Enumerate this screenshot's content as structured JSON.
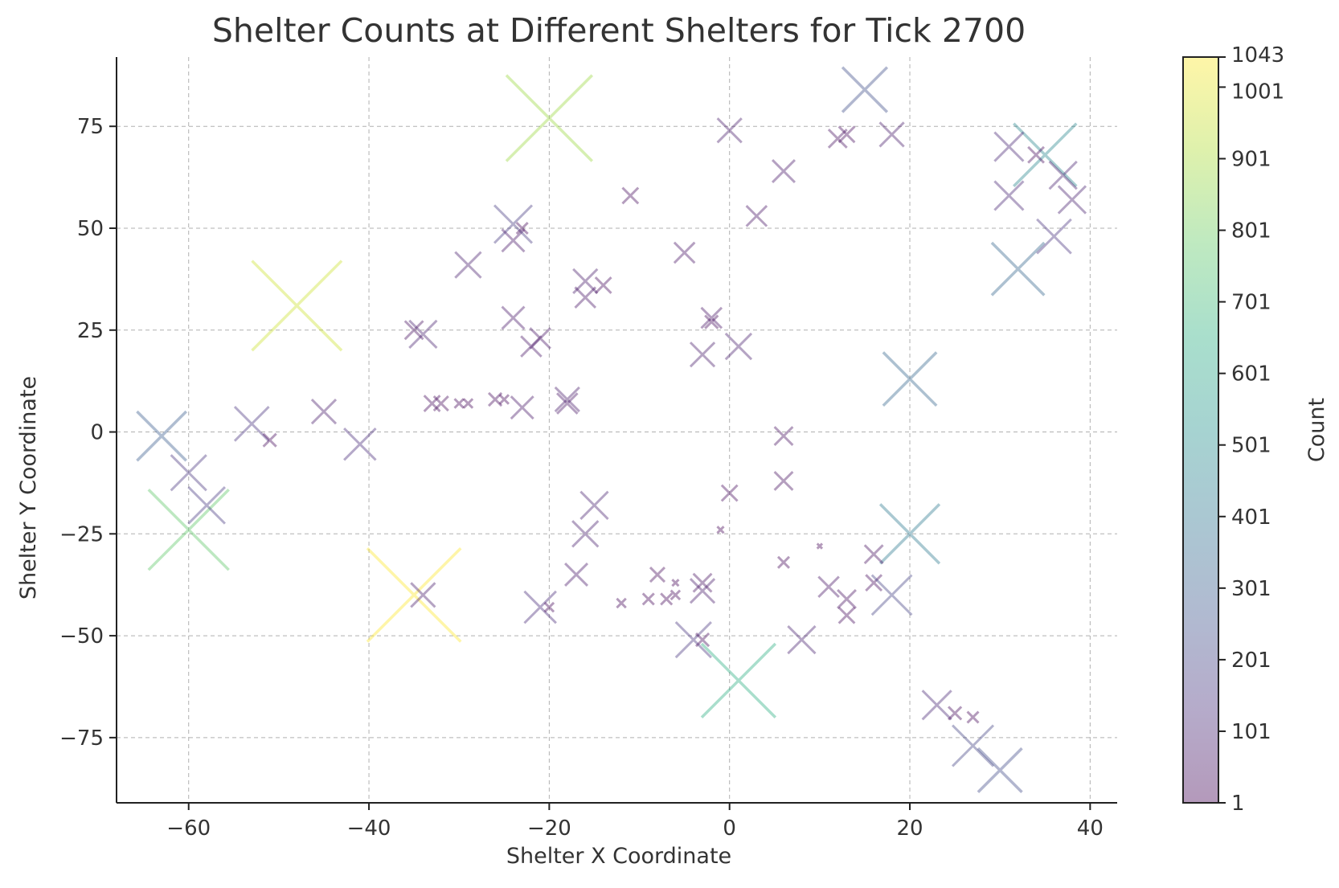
{
  "chart_data": {
    "type": "scatter",
    "marker": "x",
    "title": "Shelter Counts at Different Shelters for Tick 2700",
    "xlabel": "Shelter X Coordinate",
    "ylabel": "Shelter Y Coordinate",
    "xlim": [
      -68,
      43
    ],
    "ylim": [
      -91,
      92
    ],
    "xticks": [
      -60,
      -40,
      -20,
      0,
      20,
      40
    ],
    "yticks": [
      -75,
      -50,
      -25,
      0,
      25,
      50,
      75
    ],
    "xtick_labels": [
      "−60",
      "−40",
      "−20",
      "0",
      "20",
      "40"
    ],
    "ytick_labels": [
      "−75",
      "−50",
      "−25",
      "0",
      "25",
      "50",
      "75"
    ],
    "grid": true,
    "colormap": "viridis",
    "colorbar": {
      "label": "Count",
      "min": 1,
      "max": 1043,
      "ticks": [
        1,
        101,
        201,
        301,
        401,
        501,
        601,
        701,
        801,
        901,
        1001,
        1043
      ],
      "tick_labels": [
        "1",
        "101",
        "201",
        "301",
        "401",
        "501",
        "601",
        "701",
        "801",
        "901",
        "1001",
        "1043"
      ]
    },
    "points": [
      {
        "x": -20,
        "y": 77,
        "count": 880
      },
      {
        "x": -48,
        "y": 31,
        "count": 960
      },
      {
        "x": -35,
        "y": -40,
        "count": 1043
      },
      {
        "x": -60,
        "y": -24,
        "count": 770
      },
      {
        "x": 1,
        "y": -61,
        "count": 650
      },
      {
        "x": 35,
        "y": 68,
        "count": 470
      },
      {
        "x": 32,
        "y": 40,
        "count": 330
      },
      {
        "x": 20,
        "y": 13,
        "count": 340
      },
      {
        "x": 20,
        "y": -25,
        "count": 420
      },
      {
        "x": 15,
        "y": 84,
        "count": 240
      },
      {
        "x": -63,
        "y": -1,
        "count": 290
      },
      {
        "x": -58,
        "y": -18,
        "count": 160
      },
      {
        "x": -60,
        "y": -10,
        "count": 150
      },
      {
        "x": -53,
        "y": 2,
        "count": 140
      },
      {
        "x": -51,
        "y": -2,
        "count": 20
      },
      {
        "x": -45,
        "y": 5,
        "count": 70
      },
      {
        "x": -41,
        "y": -3,
        "count": 120
      },
      {
        "x": -35,
        "y": 25,
        "count": 40
      },
      {
        "x": -34,
        "y": 24,
        "count": 90
      },
      {
        "x": -34,
        "y": -40,
        "count": 70
      },
      {
        "x": -33,
        "y": 7,
        "count": 30
      },
      {
        "x": -32,
        "y": 7,
        "count": 25
      },
      {
        "x": -29,
        "y": 41,
        "count": 80
      },
      {
        "x": -30,
        "y": 7,
        "count": 10
      },
      {
        "x": -29,
        "y": 7,
        "count": 10
      },
      {
        "x": -26,
        "y": 8,
        "count": 20
      },
      {
        "x": -25,
        "y": 8,
        "count": 10
      },
      {
        "x": -24,
        "y": 51,
        "count": 170
      },
      {
        "x": -24,
        "y": 47,
        "count": 60
      },
      {
        "x": -24,
        "y": 28,
        "count": 60
      },
      {
        "x": -23,
        "y": 6,
        "count": 60
      },
      {
        "x": -23,
        "y": 50,
        "count": 15
      },
      {
        "x": -22,
        "y": 21,
        "count": 50
      },
      {
        "x": -21,
        "y": 23,
        "count": 50
      },
      {
        "x": -21,
        "y": -43,
        "count": 120
      },
      {
        "x": -20,
        "y": -43,
        "count": 10
      },
      {
        "x": -18,
        "y": 8,
        "count": 70
      },
      {
        "x": -18,
        "y": 7,
        "count": 50
      },
      {
        "x": -17,
        "y": -35,
        "count": 60
      },
      {
        "x": -16,
        "y": 37,
        "count": 70
      },
      {
        "x": -16,
        "y": 33,
        "count": 50
      },
      {
        "x": -16,
        "y": -25,
        "count": 80
      },
      {
        "x": -15,
        "y": -18,
        "count": 90
      },
      {
        "x": -14,
        "y": 36,
        "count": 30
      },
      {
        "x": -11,
        "y": 58,
        "count": 30
      },
      {
        "x": -12,
        "y": -42,
        "count": 10
      },
      {
        "x": -9,
        "y": -41,
        "count": 15
      },
      {
        "x": -8,
        "y": -35,
        "count": 25
      },
      {
        "x": -7,
        "y": -41,
        "count": 15
      },
      {
        "x": -6,
        "y": -37,
        "count": 5
      },
      {
        "x": -6,
        "y": -40,
        "count": 10
      },
      {
        "x": -5,
        "y": 44,
        "count": 50
      },
      {
        "x": -4,
        "y": -51,
        "count": 150
      },
      {
        "x": -3,
        "y": -51,
        "count": 20
      },
      {
        "x": -3,
        "y": -39,
        "count": 70
      },
      {
        "x": -3,
        "y": -37,
        "count": 40
      },
      {
        "x": -3,
        "y": 19,
        "count": 70
      },
      {
        "x": -2,
        "y": 28,
        "count": 50
      },
      {
        "x": -2,
        "y": 27,
        "count": 20
      },
      {
        "x": 0,
        "y": 74,
        "count": 70
      },
      {
        "x": 0,
        "y": -15,
        "count": 30
      },
      {
        "x": -1,
        "y": -24,
        "count": 5
      },
      {
        "x": 1,
        "y": 21,
        "count": 80
      },
      {
        "x": 3,
        "y": 53,
        "count": 50
      },
      {
        "x": 6,
        "y": 64,
        "count": 60
      },
      {
        "x": 6,
        "y": -1,
        "count": 40
      },
      {
        "x": 6,
        "y": -12,
        "count": 40
      },
      {
        "x": 6,
        "y": -32,
        "count": 15
      },
      {
        "x": 8,
        "y": -51,
        "count": 90
      },
      {
        "x": 10,
        "y": -28,
        "count": 3
      },
      {
        "x": 11,
        "y": -38,
        "count": 50
      },
      {
        "x": 12,
        "y": 72,
        "count": 40
      },
      {
        "x": 13,
        "y": 73,
        "count": 30
      },
      {
        "x": 13,
        "y": -41,
        "count": 40
      },
      {
        "x": 13,
        "y": -45,
        "count": 30
      },
      {
        "x": 16,
        "y": -30,
        "count": 40
      },
      {
        "x": 16,
        "y": -37,
        "count": 30
      },
      {
        "x": 18,
        "y": 73,
        "count": 70
      },
      {
        "x": 18,
        "y": -40,
        "count": 190
      },
      {
        "x": 23,
        "y": -67,
        "count": 100
      },
      {
        "x": 25,
        "y": -69,
        "count": 20
      },
      {
        "x": 27,
        "y": -70,
        "count": 15
      },
      {
        "x": 27,
        "y": -77,
        "count": 200
      },
      {
        "x": 30,
        "y": -83,
        "count": 230
      },
      {
        "x": 31,
        "y": 70,
        "count": 100
      },
      {
        "x": 31,
        "y": 58,
        "count": 100
      },
      {
        "x": 34,
        "y": 68,
        "count": 30
      },
      {
        "x": 36,
        "y": 48,
        "count": 140
      },
      {
        "x": 37,
        "y": 63,
        "count": 90
      },
      {
        "x": 38,
        "y": 57,
        "count": 90
      }
    ]
  }
}
